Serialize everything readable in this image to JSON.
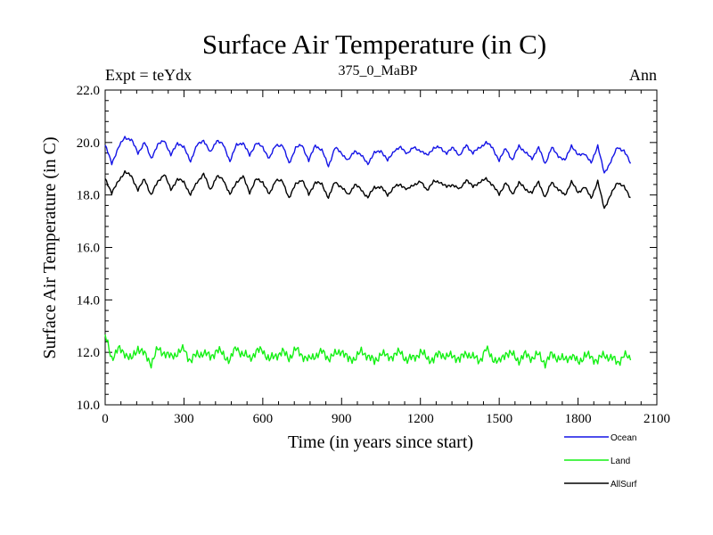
{
  "header": {
    "title": "Surface Air Temperature (in C)",
    "experiment": "Expt = teYdx",
    "subtitle": "375_0_MaBP",
    "period": "Ann"
  },
  "colors": {
    "ocean": "#1414e6",
    "land": "#14f014",
    "allsurf": "#000000",
    "axis": "#000000",
    "background": "#ffffff"
  },
  "chart_data": {
    "type": "line",
    "title": "Surface Air Temperature (in C)",
    "xlabel": "Time (in years since start)",
    "ylabel": "Surface Air Temperature (in C)",
    "xlim": [
      0,
      2100
    ],
    "ylim": [
      10.0,
      22.0
    ],
    "grid": false,
    "legend_position": "bottom-right",
    "x_ticks": [
      0,
      300,
      600,
      900,
      1200,
      1500,
      1800,
      2100
    ],
    "x_tick_labels": [
      "0",
      "300",
      "600",
      "900",
      "1200",
      "1500",
      "1800",
      "2100"
    ],
    "y_ticks": [
      10,
      12,
      14,
      16,
      18,
      20,
      22
    ],
    "y_tick_labels": [
      "10.0",
      "12.0",
      "14.0",
      "16.0",
      "18.0",
      "20.0",
      "22.0"
    ],
    "x": [
      0,
      25,
      50,
      75,
      100,
      125,
      150,
      175,
      200,
      225,
      250,
      275,
      300,
      325,
      350,
      375,
      400,
      425,
      450,
      475,
      500,
      525,
      550,
      575,
      600,
      625,
      650,
      675,
      700,
      725,
      750,
      775,
      800,
      825,
      850,
      875,
      900,
      925,
      950,
      975,
      1000,
      1025,
      1050,
      1075,
      1100,
      1125,
      1150,
      1175,
      1200,
      1225,
      1250,
      1275,
      1300,
      1325,
      1350,
      1375,
      1400,
      1425,
      1450,
      1475,
      1500,
      1525,
      1550,
      1575,
      1600,
      1625,
      1650,
      1675,
      1700,
      1725,
      1750,
      1775,
      1800,
      1825,
      1850,
      1875,
      1900,
      1925,
      1950,
      1975,
      2000
    ],
    "series": [
      {
        "name": "Ocean",
        "color": "#1414e6",
        "values": [
          19.9,
          19.2,
          19.8,
          20.2,
          20.1,
          19.6,
          20.0,
          19.4,
          19.9,
          20.1,
          19.5,
          20.0,
          19.8,
          19.3,
          19.9,
          20.1,
          19.6,
          20.1,
          19.9,
          19.3,
          19.9,
          20.0,
          19.5,
          20.0,
          19.8,
          19.4,
          19.9,
          19.9,
          19.2,
          19.8,
          19.9,
          19.3,
          19.9,
          19.7,
          19.1,
          19.8,
          19.6,
          19.3,
          19.7,
          19.5,
          19.2,
          19.6,
          19.7,
          19.3,
          19.7,
          19.8,
          19.6,
          19.8,
          19.7,
          19.5,
          19.8,
          19.8,
          19.6,
          19.8,
          19.5,
          19.9,
          19.6,
          19.8,
          20.0,
          19.8,
          19.3,
          19.8,
          19.3,
          19.9,
          19.6,
          19.4,
          19.8,
          19.2,
          19.8,
          19.5,
          19.3,
          19.9,
          19.5,
          19.6,
          19.2,
          19.9,
          18.8,
          19.3,
          19.8,
          19.7,
          19.2
        ]
      },
      {
        "name": "Land",
        "color": "#14f014",
        "values": [
          12.6,
          11.8,
          12.1,
          12.0,
          11.7,
          12.2,
          11.9,
          11.6,
          12.1,
          12.0,
          11.8,
          12.0,
          12.1,
          11.7,
          11.9,
          12.0,
          11.8,
          12.1,
          11.9,
          11.7,
          12.2,
          11.9,
          11.8,
          12.0,
          12.1,
          11.7,
          11.9,
          12.0,
          11.8,
          12.1,
          11.9,
          11.7,
          11.9,
          12.0,
          11.8,
          11.9,
          12.1,
          11.7,
          11.8,
          12.0,
          11.9,
          11.6,
          12.0,
          11.8,
          11.9,
          12.0,
          11.7,
          11.8,
          12.0,
          11.8,
          11.7,
          12.0,
          11.8,
          11.9,
          11.7,
          12.0,
          11.8,
          11.7,
          12.1,
          11.8,
          11.6,
          12.0,
          11.9,
          11.7,
          11.9,
          11.8,
          11.9,
          11.6,
          11.9,
          11.8,
          11.7,
          11.9,
          11.6,
          11.9,
          11.8,
          11.7,
          11.9,
          11.8,
          11.6,
          11.9,
          11.7
        ]
      },
      {
        "name": "AllSurf",
        "color": "#000000",
        "values": [
          18.6,
          18.1,
          18.5,
          18.9,
          18.7,
          18.2,
          18.6,
          18.0,
          18.5,
          18.8,
          18.2,
          18.6,
          18.5,
          18.0,
          18.5,
          18.8,
          18.2,
          18.7,
          18.6,
          18.0,
          18.5,
          18.7,
          18.1,
          18.6,
          18.5,
          18.0,
          18.6,
          18.5,
          17.9,
          18.4,
          18.6,
          18.0,
          18.5,
          18.4,
          17.9,
          18.5,
          18.3,
          18.0,
          18.4,
          18.2,
          17.9,
          18.3,
          18.3,
          18.0,
          18.3,
          18.4,
          18.2,
          18.4,
          18.5,
          18.2,
          18.5,
          18.5,
          18.3,
          18.4,
          18.2,
          18.6,
          18.3,
          18.5,
          18.6,
          18.4,
          18.0,
          18.5,
          18.0,
          18.5,
          18.2,
          18.1,
          18.5,
          17.9,
          18.5,
          18.2,
          18.0,
          18.5,
          18.1,
          18.3,
          17.9,
          18.5,
          17.5,
          18.0,
          18.5,
          18.3,
          17.9
        ]
      }
    ],
    "legend": [
      {
        "name": "Ocean",
        "color": "#1414e6"
      },
      {
        "name": "Land",
        "color": "#14f014"
      },
      {
        "name": "AllSurf",
        "color": "#000000"
      }
    ]
  }
}
